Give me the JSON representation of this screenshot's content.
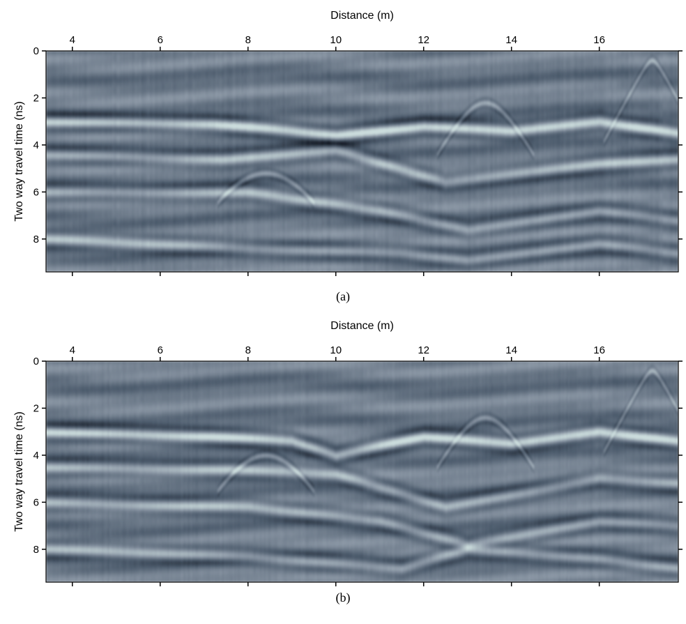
{
  "chart_data": [
    {
      "type": "heatmap",
      "panel_label": "(a)",
      "xlabel": "Distance (m)",
      "ylabel": "Two way travel time (ns)",
      "xlim": [
        3.4,
        17.8
      ],
      "ylim": [
        0,
        9.4
      ],
      "x_ticks": [
        4,
        6,
        8,
        10,
        12,
        14,
        16
      ],
      "y_ticks": [
        0,
        2,
        4,
        6,
        8
      ],
      "y_inverted": true,
      "colormap": [
        "#0b0f18",
        "#4b5a6b",
        "#8c98a6",
        "#ccdddd"
      ],
      "reflectors_ns": [
        {
          "x": [
            3.4,
            7.2,
            9.0,
            10.0,
            12.0,
            14.0,
            16.0,
            17.8
          ],
          "t": [
            3.0,
            3.1,
            3.4,
            3.6,
            3.2,
            3.4,
            3.0,
            3.5
          ]
        },
        {
          "x": [
            3.4,
            7.5,
            10.0,
            12.5,
            16.0,
            17.8
          ],
          "t": [
            4.4,
            4.6,
            4.2,
            5.6,
            4.8,
            4.6
          ]
        },
        {
          "x": [
            3.4,
            8.0,
            11.0,
            13.0,
            16.0,
            17.8
          ],
          "t": [
            6.0,
            6.0,
            6.8,
            7.6,
            6.8,
            7.2
          ]
        },
        {
          "x": [
            3.4,
            8.0,
            11.5,
            13.0,
            16.0,
            17.8
          ],
          "t": [
            8.0,
            8.4,
            8.6,
            8.9,
            8.2,
            8.6
          ]
        }
      ],
      "hyperbolas": [
        {
          "x0": 8.4,
          "t0": 5.2
        },
        {
          "x0": 13.4,
          "t0": 2.2
        },
        {
          "x0": 17.2,
          "t0": 0.4
        }
      ]
    },
    {
      "type": "heatmap",
      "panel_label": "(b)",
      "xlabel": "Distance (m)",
      "ylabel": "Two way travel time (ns)",
      "xlim": [
        3.4,
        17.8
      ],
      "ylim": [
        0,
        9.4
      ],
      "x_ticks": [
        4,
        6,
        8,
        10,
        12,
        14,
        16
      ],
      "y_ticks": [
        0,
        2,
        4,
        6,
        8
      ],
      "y_inverted": true,
      "colormap": [
        "#0b0f18",
        "#4b5a6b",
        "#8c98a6",
        "#ccdddd"
      ],
      "reflectors_ns": [
        {
          "x": [
            3.4,
            7.2,
            9.0,
            10.0,
            12.0,
            14.0,
            16.0,
            17.8
          ],
          "t": [
            3.0,
            3.2,
            3.4,
            4.0,
            3.2,
            3.5,
            3.0,
            3.4
          ]
        },
        {
          "x": [
            3.4,
            7.5,
            10.0,
            12.5,
            16.0,
            17.8
          ],
          "t": [
            4.5,
            4.6,
            4.8,
            6.2,
            5.0,
            5.2
          ]
        },
        {
          "x": [
            3.4,
            8.0,
            11.0,
            13.0,
            16.0,
            17.8
          ],
          "t": [
            6.0,
            6.2,
            6.8,
            7.8,
            6.8,
            7.0
          ]
        },
        {
          "x": [
            3.4,
            8.0,
            11.5,
            13.0,
            16.0,
            17.8
          ],
          "t": [
            8.0,
            8.3,
            8.8,
            8.0,
            8.4,
            8.8
          ]
        }
      ],
      "hyperbolas": [
        {
          "x0": 8.4,
          "t0": 4.0
        },
        {
          "x0": 13.4,
          "t0": 2.4
        },
        {
          "x0": 17.2,
          "t0": 0.4
        }
      ]
    }
  ]
}
